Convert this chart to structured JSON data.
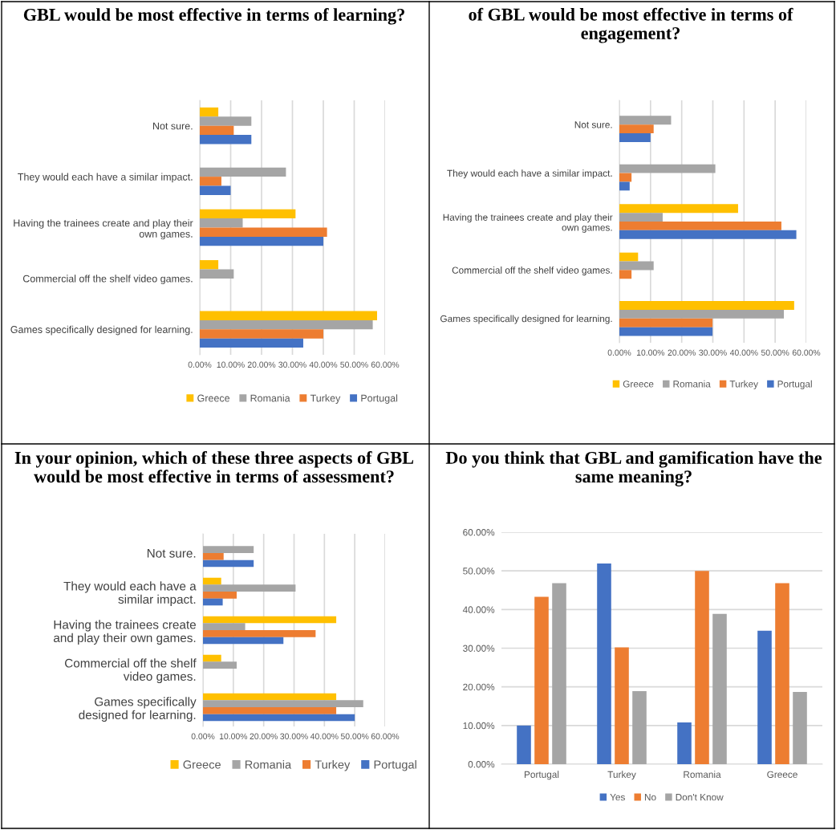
{
  "chart_data": [
    {
      "type": "bar",
      "orientation": "horizontal",
      "title": "GBL would be most effective in terms of learning?",
      "categories": [
        "Not sure.",
        "They would each have a similar impact.",
        "Having the trainees create and play their\nown games.",
        "Commercial off the shelf video games.",
        "Games specifically designed for learning."
      ],
      "series": [
        {
          "name": "Greece",
          "color": "#ffc000",
          "values": [
            6.0,
            null,
            31.0,
            6.0,
            57.4
          ]
        },
        {
          "name": "Romania",
          "color": "#a5a5a5",
          "values": [
            16.7,
            27.9,
            13.9,
            11.0,
            56.0
          ]
        },
        {
          "name": "Turkey",
          "color": "#ed7d31",
          "values": [
            11.0,
            7.0,
            41.2,
            null,
            40.0
          ]
        },
        {
          "name": "Portugal",
          "color": "#4472c4",
          "values": [
            16.7,
            10.0,
            40.0,
            null,
            33.5
          ]
        }
      ],
      "xlim": [
        0,
        60
      ],
      "xticks": [
        {
          "value": 0,
          "label": "0.00%"
        },
        {
          "value": 10,
          "label": "10.00%"
        },
        {
          "value": 20,
          "label": "20.00%"
        },
        {
          "value": 30,
          "label": "30.00%"
        },
        {
          "value": 40,
          "label": "40.00%"
        },
        {
          "value": 50,
          "label": "50.00%"
        },
        {
          "value": 60,
          "label": "60.00%"
        }
      ],
      "grid": "x",
      "legend": "bottom"
    },
    {
      "type": "bar",
      "orientation": "horizontal",
      "title": "of GBL would be most effective in terms of engagement?",
      "categories": [
        "Not sure.",
        "They would each have a similar impact.",
        "Having the trainees create and play their\nown games.",
        "Commercial off the shelf video games.",
        "Games specifically designed for learning."
      ],
      "series": [
        {
          "name": "Greece",
          "color": "#ffc000",
          "values": [
            null,
            null,
            38.1,
            6.0,
            56.1
          ]
        },
        {
          "name": "Romania",
          "color": "#a5a5a5",
          "values": [
            16.6,
            30.8,
            13.9,
            11.0,
            52.8
          ]
        },
        {
          "name": "Turkey",
          "color": "#ed7d31",
          "values": [
            11.0,
            3.9,
            52.0,
            3.9,
            29.9
          ]
        },
        {
          "name": "Portugal",
          "color": "#4472c4",
          "values": [
            10.0,
            3.3,
            56.8,
            null,
            29.9
          ]
        }
      ],
      "xlim": [
        0,
        60
      ],
      "xticks": [
        {
          "value": 0,
          "label": "0.00%"
        },
        {
          "value": 10,
          "label": "10.00%"
        },
        {
          "value": 20,
          "label": "20.00%"
        },
        {
          "value": 30,
          "label": "30.00%"
        },
        {
          "value": 40,
          "label": "40.00%"
        },
        {
          "value": 50,
          "label": "50.00%"
        },
        {
          "value": 60,
          "label": "60.00%"
        }
      ],
      "grid": "x",
      "legend": "bottom"
    },
    {
      "type": "bar",
      "orientation": "horizontal",
      "title": "In your opinion, which of these three aspects of GBL would be most effective in terms of assessment?",
      "categories": [
        "Not sure.",
        "They would each have a\nsimilar impact.",
        "Having the trainees create\nand play their own games.",
        "Commercial off the shelf\nvideo games.",
        "Games specifically\ndesigned for learning."
      ],
      "series": [
        {
          "name": "Greece",
          "color": "#ffc000",
          "values": [
            null,
            6.0,
            43.9,
            6.0,
            43.9
          ]
        },
        {
          "name": "Romania",
          "color": "#a5a5a5",
          "values": [
            16.7,
            30.5,
            13.9,
            11.1,
            52.8
          ]
        },
        {
          "name": "Turkey",
          "color": "#ed7d31",
          "values": [
            6.8,
            11.1,
            37.1,
            null,
            43.9
          ]
        },
        {
          "name": "Portugal",
          "color": "#4472c4",
          "values": [
            16.7,
            6.5,
            26.5,
            null,
            50.0
          ]
        }
      ],
      "xlim": [
        0,
        60
      ],
      "xticks": [
        {
          "value": 0,
          "label": "0.00%"
        },
        {
          "value": 10,
          "label": "10.00%"
        },
        {
          "value": 20,
          "label": "20.00%"
        },
        {
          "value": 30,
          "label": "30.00%"
        },
        {
          "value": 40,
          "label": "40.00%"
        },
        {
          "value": 50,
          "label": "50.00%"
        },
        {
          "value": 60,
          "label": "60.00%"
        }
      ],
      "grid": "x",
      "legend": "bottom"
    },
    {
      "type": "bar",
      "title": "Do you think that GBL and gamification have the same meaning?",
      "categories": [
        "Portugal",
        "Turkey",
        "Romania",
        "Greece"
      ],
      "series": [
        {
          "name": "Yes",
          "color": "#4472c4",
          "values": [
            10.0,
            51.9,
            10.8,
            34.5
          ]
        },
        {
          "name": "No",
          "color": "#ed7d31",
          "values": [
            43.3,
            30.2,
            50.0,
            46.8
          ]
        },
        {
          "name": "Don't Know",
          "color": "#a5a5a5",
          "values": [
            46.8,
            18.9,
            38.9,
            18.7
          ]
        }
      ],
      "ylim": [
        0,
        60
      ],
      "yticks": [
        {
          "value": 0,
          "label": "0.00%"
        },
        {
          "value": 10,
          "label": "10.00%"
        },
        {
          "value": 20,
          "label": "20.00%"
        },
        {
          "value": 30,
          "label": "30.00%"
        },
        {
          "value": 40,
          "label": "40.00%"
        },
        {
          "value": 50,
          "label": "50.00%"
        },
        {
          "value": 60,
          "label": "60.00%"
        }
      ],
      "grid": "y",
      "legend": "bottom"
    }
  ]
}
